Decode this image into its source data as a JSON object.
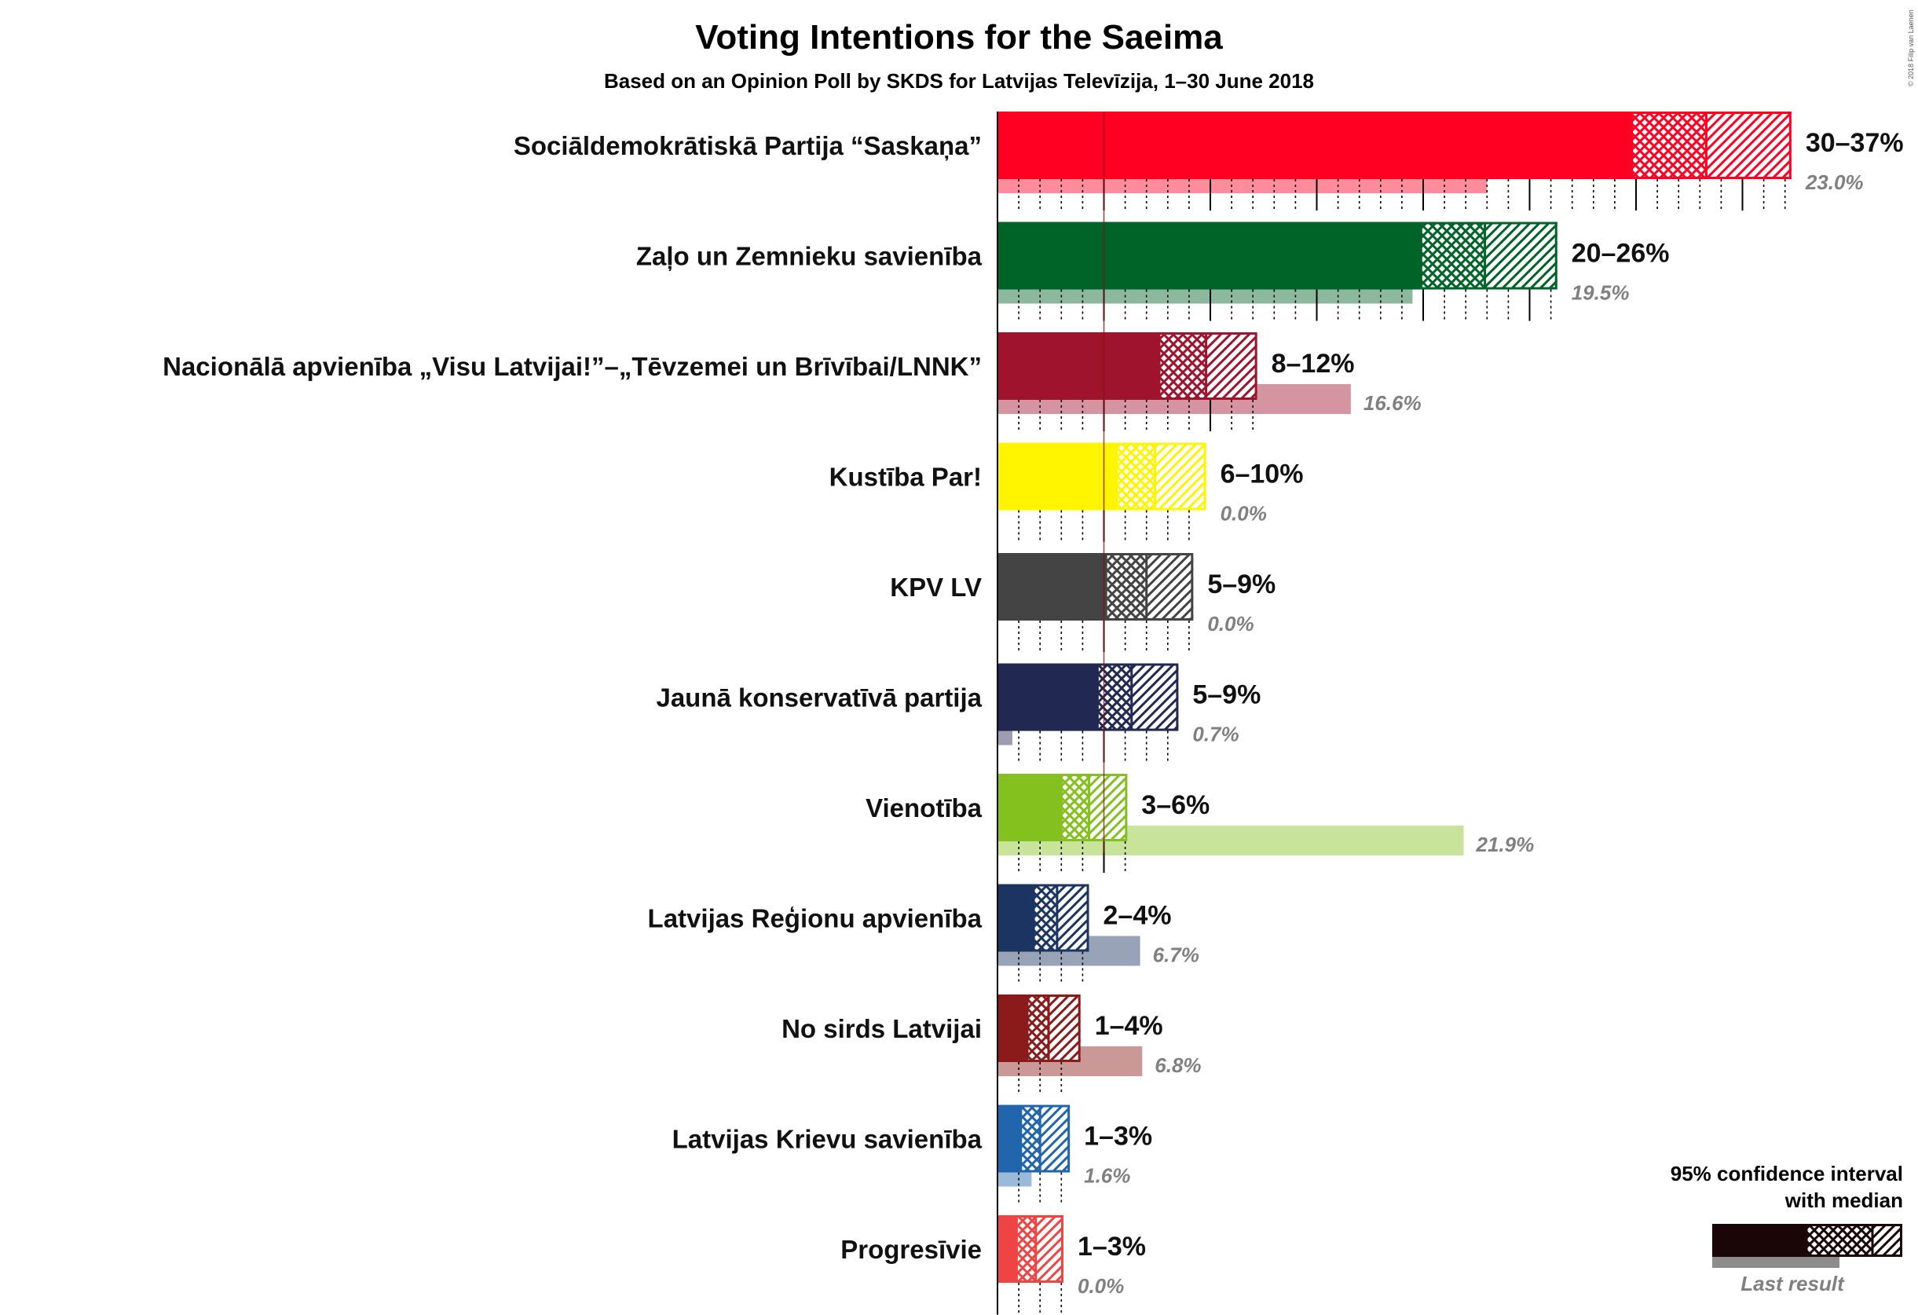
{
  "chart_data": {
    "type": "bar",
    "title": "Voting Intentions for the Saeima",
    "subtitle": "Based on an Opinion Poll by SKDS for Latvijas Televīzija, 1–30 June 2018",
    "copyright": "© 2018 Filip van Laenen",
    "xlim": [
      0,
      38
    ],
    "threshold": 5,
    "parties": [
      {
        "name": "Sociāldemokrātiskā Partija “Saskaņa”",
        "color": "#FF0022",
        "lo": 29.8,
        "median": 33.3,
        "hi": 37.3,
        "range_label": "30–37%",
        "last": 23.0,
        "last_label": "23.0%"
      },
      {
        "name": "Zaļo un Zemnieku savienība",
        "color": "#006428",
        "lo": 19.9,
        "median": 22.9,
        "hi": 26.3,
        "range_label": "20–26%",
        "last": 19.5,
        "last_label": "19.5%"
      },
      {
        "name": "Nacionālā apvienība „Visu Latvijai!”–„Tēvzemei un Brīvībai/LNNK”",
        "color": "#A0132C",
        "lo": 7.6,
        "median": 9.8,
        "hi": 12.2,
        "range_label": "8–12%",
        "last": 16.6,
        "last_label": "16.6%"
      },
      {
        "name": "Kustība Par!",
        "color": "#FFF500",
        "lo": 5.6,
        "median": 7.4,
        "hi": 9.8,
        "range_label": "6–10%",
        "last": 0.0,
        "last_label": "0.0%"
      },
      {
        "name": "KPV LV",
        "color": "#444444",
        "lo": 5.1,
        "median": 7.0,
        "hi": 9.2,
        "range_label": "5–9%",
        "last": 0.0,
        "last_label": "0.0%"
      },
      {
        "name": "Jaunā konservatīvā partija",
        "color": "#212953",
        "lo": 4.7,
        "median": 6.3,
        "hi": 8.5,
        "range_label": "5–9%",
        "last": 0.7,
        "last_label": "0.7%"
      },
      {
        "name": "Vienotība",
        "color": "#84C01E",
        "lo": 3.0,
        "median": 4.3,
        "hi": 6.1,
        "range_label": "3–6%",
        "last": 21.9,
        "last_label": "21.9%"
      },
      {
        "name": "Latvijas Reģionu apvienība",
        "color": "#1C3461",
        "lo": 1.7,
        "median": 2.8,
        "hi": 4.3,
        "range_label": "2–4%",
        "last": 6.7,
        "last_label": "6.7%"
      },
      {
        "name": "No sirds Latvijai",
        "color": "#8B1A1A",
        "lo": 1.4,
        "median": 2.4,
        "hi": 3.9,
        "range_label": "1–4%",
        "last": 6.8,
        "last_label": "6.8%"
      },
      {
        "name": "Latvijas Krievu savienība",
        "color": "#2166AC",
        "lo": 1.1,
        "median": 2.0,
        "hi": 3.4,
        "range_label": "1–3%",
        "last": 1.6,
        "last_label": "1.6%"
      },
      {
        "name": "Progresīvie",
        "color": "#EF4444",
        "lo": 0.9,
        "median": 1.8,
        "hi": 3.1,
        "range_label": "1–3%",
        "last": 0.0,
        "last_label": "0.0%"
      }
    ],
    "legend": {
      "line1": "95% confidence interval",
      "line2": "with median",
      "last_result": "Last result",
      "color": "#1A0606"
    }
  }
}
